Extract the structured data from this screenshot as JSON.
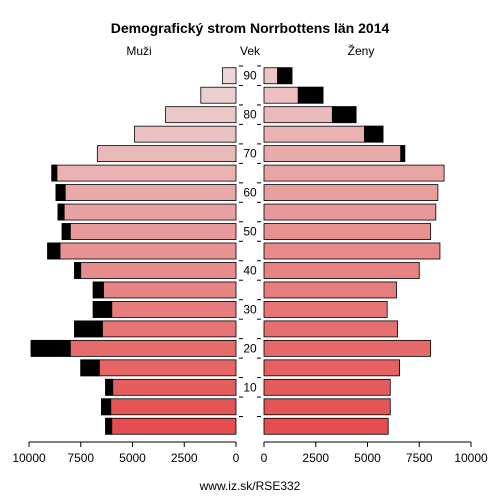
{
  "chart_data": {
    "type": "bar",
    "orientation": "population-pyramid",
    "title": "Demografický strom Norrbottens län 2014",
    "left_label": "Muži",
    "center_label": "Vek",
    "right_label": "Ženy",
    "footer": "www.iz.sk/RSE332",
    "xlim": [
      0,
      10000
    ],
    "x_ticks_left": [
      "10000",
      "7500",
      "5000",
      "2500",
      "0"
    ],
    "x_ticks_right": [
      "0",
      "2500",
      "5000",
      "7500",
      "10000"
    ],
    "age_ticks": [
      "90",
      "80",
      "70",
      "60",
      "50",
      "40",
      "30",
      "20",
      "10"
    ],
    "age_groups": [
      "0-4",
      "5-9",
      "10-14",
      "15-19",
      "20-24",
      "25-29",
      "30-34",
      "35-39",
      "40-44",
      "45-49",
      "50-54",
      "55-59",
      "60-64",
      "65-69",
      "70-74",
      "75-79",
      "80-84",
      "85-89",
      "90+"
    ],
    "series": [
      {
        "name": "Muži",
        "total": [
          6300,
          6500,
          6300,
          7500,
          9900,
          7800,
          6900,
          6900,
          7800,
          9100,
          8400,
          8600,
          8700,
          8900,
          6700,
          4900,
          3400,
          1700,
          650
        ],
        "surplus": [
          300,
          450,
          350,
          900,
          1900,
          1350,
          900,
          500,
          300,
          600,
          400,
          300,
          450,
          250,
          0,
          0,
          0,
          0,
          0
        ]
      },
      {
        "name": "Ženy",
        "total": [
          6000,
          6100,
          6100,
          6550,
          8050,
          6450,
          5950,
          6400,
          7500,
          8500,
          8050,
          8300,
          8400,
          8700,
          6800,
          5750,
          4450,
          2850,
          1350
        ],
        "surplus": [
          0,
          0,
          0,
          0,
          0,
          0,
          0,
          0,
          0,
          0,
          0,
          0,
          0,
          0,
          200,
          900,
          1150,
          1200,
          700
        ]
      }
    ]
  }
}
